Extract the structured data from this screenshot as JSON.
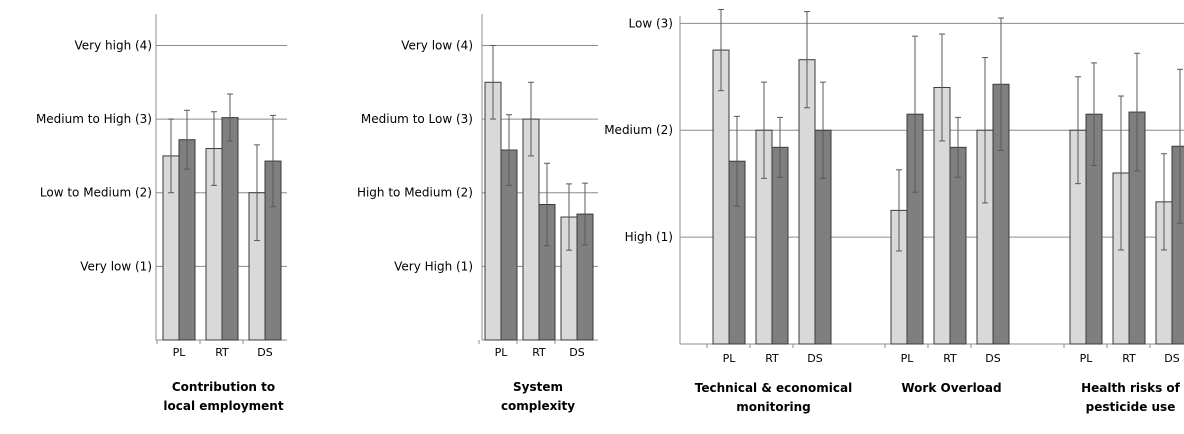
{
  "chart_data": [
    {
      "type": "bar",
      "title": [
        "Contribution to",
        "local employment"
      ],
      "categories": [
        "PL",
        "RT",
        "DS"
      ],
      "ylim": [
        0,
        4.4
      ],
      "grid": true,
      "yticks": [
        {
          "value": 1,
          "label": "Very low (1)"
        },
        {
          "value": 2,
          "label": "Low to Medium (2)"
        },
        {
          "value": 3,
          "label": "Medium to High (3)"
        },
        {
          "value": 4,
          "label": "Very high (4)"
        }
      ],
      "series": [
        {
          "color": "#d9d9d9",
          "values": [
            2.5,
            2.6,
            2.0
          ],
          "error": [
            0.5,
            0.5,
            0.65
          ]
        },
        {
          "color": "#7f7f7f",
          "values": [
            2.72,
            3.02,
            2.43
          ],
          "error": [
            0.4,
            0.32,
            0.62
          ]
        }
      ]
    },
    {
      "type": "bar",
      "title": [
        "System",
        "complexity"
      ],
      "categories": [
        "PL",
        "RT",
        "DS"
      ],
      "ylim": [
        0,
        4.4
      ],
      "grid": true,
      "yticks": [
        {
          "value": 1,
          "label": "Very High (1)"
        },
        {
          "value": 2,
          "label": "High to Medium (2)"
        },
        {
          "value": 3,
          "label": "Medium to Low (3)"
        },
        {
          "value": 4,
          "label": "Very low (4)"
        }
      ],
      "series": [
        {
          "color": "#d9d9d9",
          "values": [
            3.5,
            3.0,
            1.67
          ],
          "error": [
            0.5,
            0.5,
            0.45
          ]
        },
        {
          "color": "#7f7f7f",
          "values": [
            2.58,
            1.84,
            1.71
          ],
          "error": [
            0.48,
            0.56,
            0.42
          ]
        }
      ]
    },
    {
      "type": "bar",
      "groups": [
        {
          "title": [
            "Technical & economical",
            "monitoring"
          ],
          "categories": [
            "PL",
            "RT",
            "DS"
          ]
        },
        {
          "title": [
            "Work Overload"
          ],
          "categories": [
            "PL",
            "RT",
            "DS"
          ]
        },
        {
          "title": [
            "Health risks of",
            "pesticide use"
          ],
          "categories": [
            "PL",
            "RT",
            "DS"
          ]
        }
      ],
      "ylim": [
        0,
        3.05
      ],
      "grid": true,
      "yticks": [
        {
          "value": 1,
          "label": "High (1)"
        },
        {
          "value": 2,
          "label": "Medium (2)"
        },
        {
          "value": 3,
          "label": "Low (3)"
        }
      ],
      "series": [
        {
          "color": "#d9d9d9",
          "values": [
            2.75,
            2.0,
            2.66,
            1.25,
            2.4,
            2.0,
            2.0,
            1.6,
            1.33
          ],
          "error": [
            0.38,
            0.45,
            0.45,
            0.38,
            0.5,
            0.68,
            0.5,
            0.72,
            0.45
          ]
        },
        {
          "color": "#7f7f7f",
          "values": [
            1.71,
            1.84,
            2.0,
            2.15,
            1.84,
            2.43,
            2.15,
            2.17,
            1.85
          ],
          "error": [
            0.42,
            0.28,
            0.45,
            0.73,
            0.28,
            0.62,
            0.48,
            0.55,
            0.72
          ]
        }
      ]
    }
  ]
}
